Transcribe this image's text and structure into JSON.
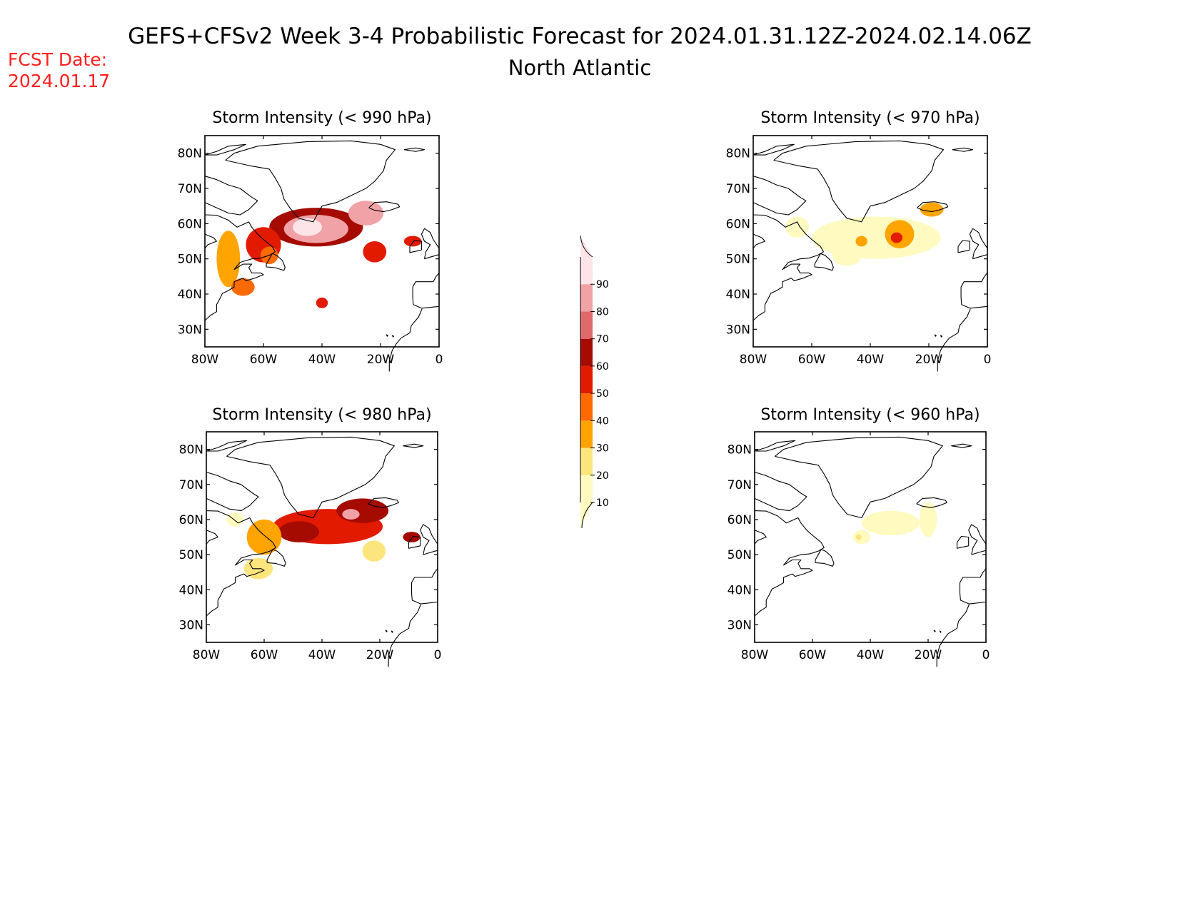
{
  "header": {
    "title": "GEFS+CFSv2 Week 3-4 Probabilistic Forecast for 2024.01.31.12Z-2024.02.14.06Z",
    "subtitle": "North Atlantic",
    "fcst_label": "FCST Date:",
    "fcst_date": "2024.01.17",
    "fcst_color": "#ff2020"
  },
  "axes": {
    "lat_ticks": [
      "80N",
      "70N",
      "60N",
      "50N",
      "40N",
      "30N"
    ],
    "lon_ticks": [
      "80W",
      "60W",
      "40W",
      "20W",
      "0"
    ]
  },
  "colorbar": {
    "levels": [
      "10",
      "20",
      "30",
      "40",
      "50",
      "60",
      "70",
      "80",
      "90"
    ],
    "colors": [
      "#fffbc0",
      "#fde57e",
      "#ffa400",
      "#ff6a00",
      "#e21a00",
      "#a50b00",
      "#e06a6a",
      "#f0a2a6",
      "#fde4e8"
    ]
  },
  "panels": [
    {
      "title": "Storm Intensity (< 990 hPa)",
      "blobs": [
        {
          "lon": -42,
          "lat": 59.0,
          "rlon": 16,
          "rlat": 5.5,
          "level": 5
        },
        {
          "lon": -42,
          "lat": 58.5,
          "rlon": 11,
          "rlat": 4.0,
          "level": 7
        },
        {
          "lon": -45,
          "lat": 59.0,
          "rlon": 5,
          "rlat": 2.5,
          "level": 8
        },
        {
          "lon": -25,
          "lat": 63.0,
          "rlon": 6,
          "rlat": 3.5,
          "level": 7
        },
        {
          "lon": -60,
          "lat": 54.0,
          "rlon": 6,
          "rlat": 5.0,
          "level": 4
        },
        {
          "lon": -58,
          "lat": 51.0,
          "rlon": 3,
          "rlat": 2.5,
          "level": 3
        },
        {
          "lon": -22,
          "lat": 52.0,
          "rlon": 4,
          "rlat": 3.0,
          "level": 4
        },
        {
          "lon": -72,
          "lat": 50.0,
          "rlon": 4,
          "rlat": 8.0,
          "level": 2
        },
        {
          "lon": -67,
          "lat": 42.0,
          "rlon": 4,
          "rlat": 2.5,
          "level": 3
        },
        {
          "lon": -40,
          "lat": 37.5,
          "rlon": 2,
          "rlat": 1.5,
          "level": 4
        },
        {
          "lon": -9,
          "lat": 55.0,
          "rlon": 3,
          "rlat": 1.5,
          "level": 4
        }
      ]
    },
    {
      "title": "Storm Intensity (< 980 hPa)",
      "blobs": [
        {
          "lon": -38,
          "lat": 58.0,
          "rlon": 19,
          "rlat": 5.0,
          "level": 4
        },
        {
          "lon": -26,
          "lat": 62.5,
          "rlon": 9,
          "rlat": 3.5,
          "level": 5
        },
        {
          "lon": -48,
          "lat": 56.5,
          "rlon": 7,
          "rlat": 3.0,
          "level": 5
        },
        {
          "lon": -30,
          "lat": 61.5,
          "rlon": 3,
          "rlat": 1.5,
          "level": 7
        },
        {
          "lon": -60,
          "lat": 55.0,
          "rlon": 6,
          "rlat": 5.0,
          "level": 2
        },
        {
          "lon": -22,
          "lat": 51.0,
          "rlon": 4,
          "rlat": 3.0,
          "level": 1
        },
        {
          "lon": -9,
          "lat": 55.0,
          "rlon": 3,
          "rlat": 1.5,
          "level": 5
        },
        {
          "lon": -70,
          "lat": 60.0,
          "rlon": 3,
          "rlat": 2.0,
          "level": 0
        },
        {
          "lon": -62,
          "lat": 46.0,
          "rlon": 5,
          "rlat": 3.0,
          "level": 1
        }
      ]
    },
    {
      "title": "Storm Intensity (< 970 hPa)",
      "blobs": [
        {
          "lon": -38,
          "lat": 56.0,
          "rlon": 22,
          "rlat": 6.0,
          "level": 0
        },
        {
          "lon": -30,
          "lat": 57.0,
          "rlon": 5,
          "rlat": 4.0,
          "level": 2
        },
        {
          "lon": -31,
          "lat": 56.0,
          "rlon": 2,
          "rlat": 1.5,
          "level": 4
        },
        {
          "lon": -19,
          "lat": 64.0,
          "rlon": 4,
          "rlat": 2.0,
          "level": 2
        },
        {
          "lon": -43,
          "lat": 55.0,
          "rlon": 2,
          "rlat": 1.5,
          "level": 2
        },
        {
          "lon": -48,
          "lat": 51.0,
          "rlon": 5,
          "rlat": 3.0,
          "level": 0
        },
        {
          "lon": -65,
          "lat": 59.0,
          "rlon": 4,
          "rlat": 3.0,
          "level": 0
        }
      ]
    },
    {
      "title": "Storm Intensity (< 960 hPa)",
      "blobs": [
        {
          "lon": -33,
          "lat": 59.0,
          "rlon": 10,
          "rlat": 3.5,
          "level": 0
        },
        {
          "lon": -43,
          "lat": 55.0,
          "rlon": 3,
          "rlat": 2.0,
          "level": 0
        },
        {
          "lon": -20,
          "lat": 60.0,
          "rlon": 3,
          "rlat": 5.0,
          "level": 0
        },
        {
          "lon": -44,
          "lat": 55.0,
          "rlon": 1,
          "rlat": 0.8,
          "level": 1
        }
      ]
    }
  ]
}
